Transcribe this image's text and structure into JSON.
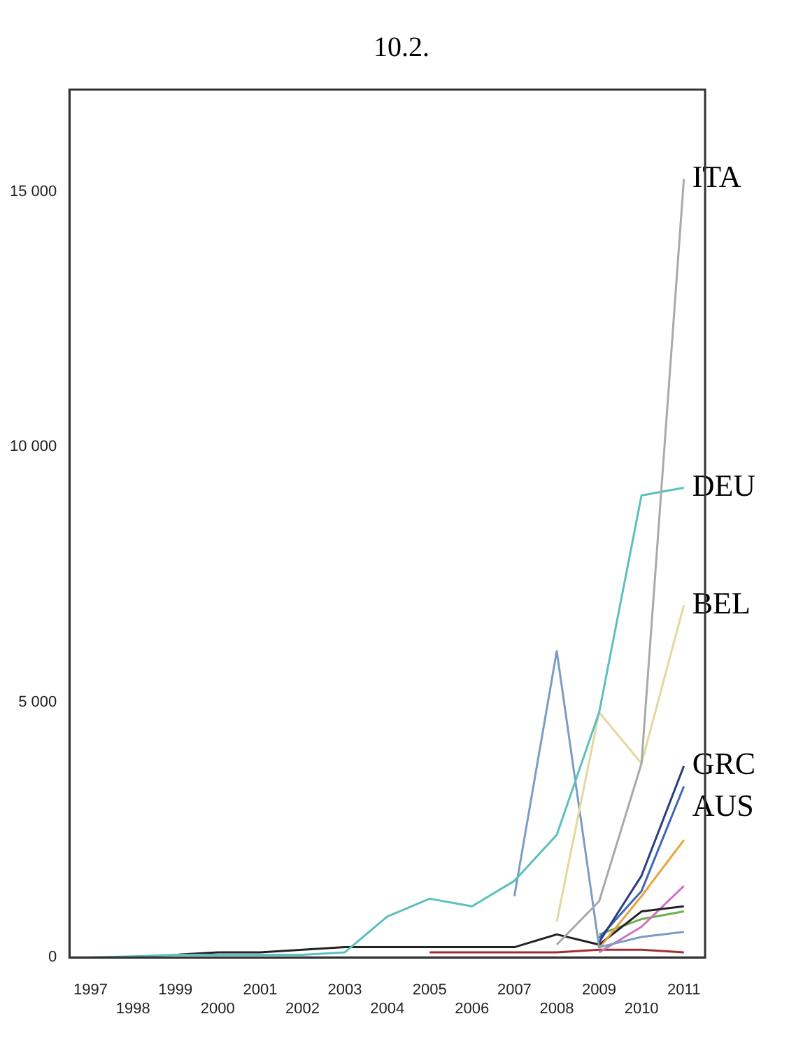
{
  "chart_data": {
    "type": "line",
    "title": "10.2.",
    "categories": [
      "1997",
      "1998",
      "1999",
      "2000",
      "2001",
      "2002",
      "2003",
      "2004",
      "2005",
      "2006",
      "2007",
      "2008",
      "2009",
      "2010",
      "2011"
    ],
    "ylim": [
      0,
      17000
    ],
    "yticks": [
      {
        "value": 0,
        "label": "0"
      },
      {
        "value": 5000,
        "label": "5 000"
      },
      {
        "value": 10000,
        "label": "10 000"
      },
      {
        "value": 15000,
        "label": "15 000"
      }
    ],
    "grid": false,
    "legend": false,
    "marker": "none",
    "line_style": "solid",
    "series": [
      {
        "name": "ITA",
        "color": "#a9a9a9",
        "values": [
          null,
          null,
          null,
          null,
          null,
          null,
          null,
          null,
          null,
          null,
          null,
          250,
          1100,
          3800,
          15250
        ]
      },
      {
        "name": "DEU",
        "color": "#5bc0be",
        "values": [
          0,
          20,
          50,
          50,
          50,
          50,
          100,
          800,
          1150,
          1000,
          1500,
          2400,
          4800,
          9050,
          9200
        ]
      },
      {
        "name": "BEL",
        "color": "#e3d8a0",
        "values": [
          null,
          null,
          null,
          null,
          null,
          null,
          null,
          null,
          null,
          null,
          null,
          700,
          4800,
          3800,
          6900
        ]
      },
      {
        "color": "#7a9cc6",
        "values": [
          null,
          null,
          null,
          null,
          null,
          null,
          null,
          null,
          null,
          null,
          1200,
          6000,
          200,
          400,
          500
        ]
      },
      {
        "name": "GRC",
        "color": "#2b3f7f",
        "values": [
          null,
          null,
          null,
          null,
          null,
          null,
          null,
          null,
          null,
          null,
          null,
          null,
          300,
          1600,
          3750
        ]
      },
      {
        "name": "AUS",
        "color": "#3f67b5",
        "values": [
          null,
          null,
          null,
          null,
          null,
          null,
          null,
          null,
          null,
          null,
          null,
          null,
          380,
          1300,
          3350
        ]
      },
      {
        "color": "#e8a33c",
        "values": [
          null,
          null,
          null,
          null,
          null,
          null,
          null,
          null,
          null,
          null,
          null,
          null,
          180,
          1200,
          2300
        ]
      },
      {
        "color": "#222222",
        "values": [
          null,
          null,
          50,
          100,
          100,
          150,
          200,
          200,
          200,
          200,
          200,
          450,
          250,
          900,
          1000
        ]
      },
      {
        "color": "#d070c0",
        "values": [
          null,
          null,
          null,
          null,
          null,
          null,
          null,
          null,
          null,
          null,
          null,
          null,
          100,
          600,
          1400
        ]
      },
      {
        "color": "#70b050",
        "values": [
          null,
          null,
          null,
          null,
          null,
          null,
          null,
          null,
          null,
          null,
          null,
          null,
          450,
          750,
          900
        ]
      },
      {
        "color": "#a03030",
        "values": [
          null,
          null,
          null,
          null,
          null,
          null,
          null,
          null,
          100,
          100,
          100,
          100,
          150,
          150,
          100
        ]
      }
    ]
  }
}
